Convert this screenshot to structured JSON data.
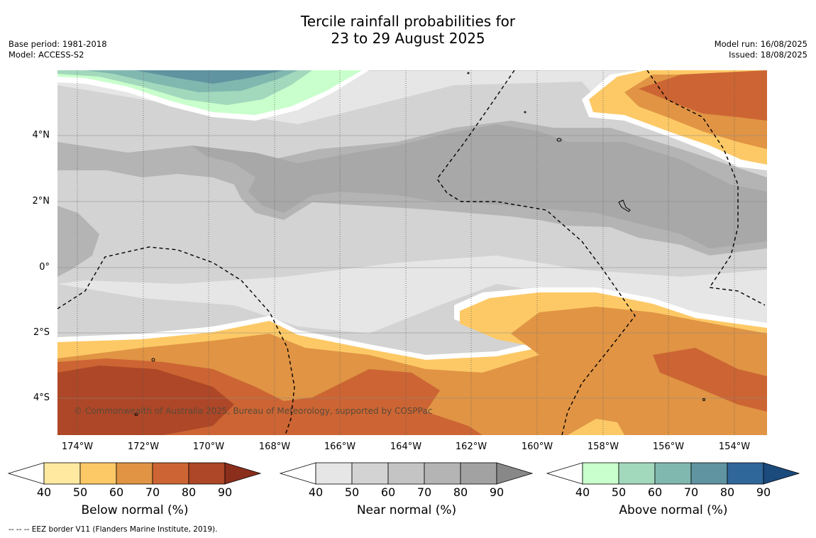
{
  "title_line1": "Tercile rainfall probabilities for",
  "title_line2": "23 to 29 August 2025",
  "base_period": "Base period: 1981-2018",
  "model": "Model: ACCESS-S2",
  "model_run": "Model run: 16/08/2025",
  "issued": "Issued: 18/08/2025",
  "copyright": "© Commonwealth of Australia 2025, Bureau of Meteorology, supported by COSPPac",
  "footer": "--  --  -- EEZ border V11 (Flanders Marine Institute, 2019).",
  "lon_labels": [
    "174°W",
    "172°W",
    "170°W",
    "168°W",
    "166°W",
    "164°W",
    "162°W",
    "160°W",
    "158°W",
    "156°W",
    "154°W"
  ],
  "lat_labels": [
    "4°N",
    "2°N",
    "0°",
    "2°S",
    "4°S"
  ],
  "colorbars": [
    {
      "title": "Below normal (%)",
      "ticks": [
        "40",
        "50",
        "60",
        "70",
        "80",
        "90"
      ],
      "colors": [
        "#ffffff",
        "#ffe9a1",
        "#fdc966",
        "#e09444",
        "#cc6533",
        "#ad4727",
        "#8b2e1c"
      ]
    },
    {
      "title": "Near normal (%)",
      "ticks": [
        "40",
        "50",
        "60",
        "70",
        "80",
        "90"
      ],
      "colors": [
        "#ffffff",
        "#e6e6e6",
        "#d3d3d3",
        "#c4c4c4",
        "#b4b4b4",
        "#a2a2a2",
        "#888888"
      ]
    },
    {
      "title": "Above normal (%)",
      "ticks": [
        "40",
        "50",
        "60",
        "70",
        "80",
        "90"
      ],
      "colors": [
        "#ffffff",
        "#c9ffcc",
        "#a2d8bc",
        "#80b8b0",
        "#5f94a0",
        "#30679a",
        "#1b4a7d"
      ]
    }
  ]
}
